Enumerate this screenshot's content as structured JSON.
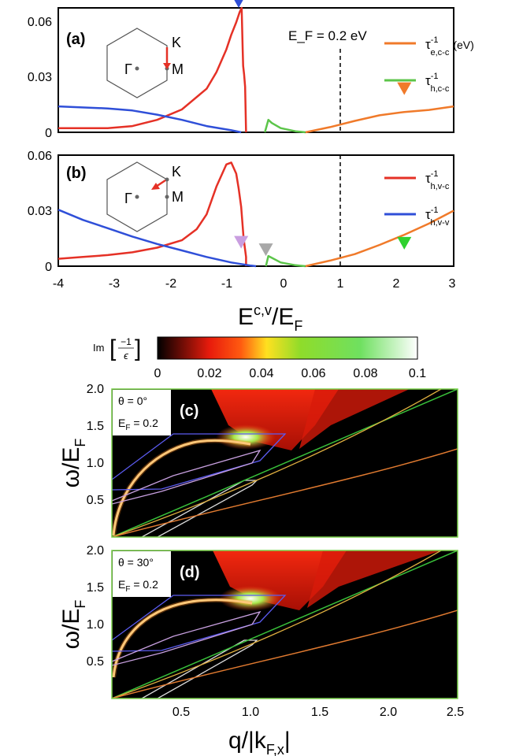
{
  "chart_data": [
    {
      "id": "a",
      "type": "line",
      "panel_label": "(a)",
      "ylim": [
        0,
        0.06
      ],
      "xlim": [
        -4,
        4
      ],
      "yticks": [
        "0",
        "0.03",
        "0.06"
      ],
      "annotation": "E_F = 0.2 eV",
      "inset": {
        "gamma": "Γ",
        "K": "K",
        "M": "M"
      },
      "series": [
        {
          "name": "τ^-1 e,c-c (eV)",
          "main": "τ",
          "sup": "-1",
          "sub": "e,c-c",
          "extra": "(eV)",
          "color": "#f07a2a",
          "x": [
            1,
            1.5,
            2,
            2.5,
            3,
            3.5,
            4
          ],
          "y": [
            0,
            0.0025,
            0.0055,
            0.0082,
            0.0098,
            0.0108,
            0.0125
          ]
        },
        {
          "name": "τ^-1 h,c-c",
          "main": "τ",
          "sup": "-1",
          "sub": "h,c-c",
          "color": "#5cc54a",
          "x": [
            0.18,
            0.25,
            0.32,
            0.5,
            0.8,
            1
          ],
          "y": [
            0,
            0.006,
            0.0045,
            0.002,
            0.0005,
            0
          ]
        },
        {
          "name": "red",
          "color": "#e53126",
          "x": [
            -4,
            -3.5,
            -3,
            -2.5,
            -2,
            -1.5,
            -1,
            -0.8,
            -0.6,
            -0.5,
            -0.4,
            -0.33,
            -0.29,
            -0.27,
            -0.26,
            -0.24,
            -0.22,
            -0.2
          ],
          "y": [
            0.002,
            0.002,
            0.002,
            0.003,
            0.006,
            0.011,
            0.021,
            0.029,
            0.04,
            0.047,
            0.053,
            0.058,
            0.06,
            0.04,
            0.032,
            0.028,
            0.022,
            0
          ]
        },
        {
          "name": "blue",
          "color": "#2f4fd8",
          "x": [
            -4,
            -3,
            -2.5,
            -2,
            -1.5,
            -1,
            -0.5,
            -0.3
          ],
          "y": [
            0.0125,
            0.0115,
            0.0105,
            0.0085,
            0.006,
            0.003,
            0.001,
            0
          ]
        }
      ],
      "markers": [
        {
          "x": -0.35,
          "y": 0.06,
          "color": "#2f4fd8"
        },
        {
          "x": 3.0,
          "y": 0.018,
          "color": "#f07a2a"
        }
      ]
    },
    {
      "id": "b",
      "type": "line",
      "panel_label": "(b)",
      "ylim": [
        0,
        0.06
      ],
      "xlim": [
        -4,
        4
      ],
      "yticks": [
        "0",
        "0.03",
        "0.06"
      ],
      "xticks": [
        "-4",
        "-3",
        "-2",
        "-1",
        "0",
        "1",
        "2",
        "3",
        "4"
      ],
      "xlabel": "E^{c,v}/E_F",
      "xlabel_main": "E",
      "xlabel_sup": "c,v",
      "xlabel_tail": "/E",
      "xlabel_sub": "F",
      "inset": {
        "gamma": "Γ",
        "K": "K",
        "M": "M"
      },
      "series": [
        {
          "name": "τ^-1 h,v-c",
          "main": "τ",
          "sup": "-1",
          "sub": "h,v-c",
          "color": "#e53126",
          "x": [
            -4,
            -3.5,
            -3,
            -2.5,
            -2,
            -1.5,
            -1.2,
            -1,
            -0.8,
            -0.6,
            -0.5,
            -0.4,
            -0.35,
            -0.3,
            -0.25,
            -0.2,
            -0.2
          ],
          "y": [
            0.004,
            0.005,
            0.006,
            0.0075,
            0.01,
            0.014,
            0.02,
            0.028,
            0.043,
            0.055,
            0.056,
            0.05,
            0.042,
            0.032,
            0.015,
            0.005,
            0
          ]
        },
        {
          "name": "τ^-1 h,v-v",
          "main": "τ",
          "sup": "-1",
          "sub": "h,v-v",
          "color": "#2f4fd8",
          "x": [
            -4,
            -3.5,
            -3,
            -2.5,
            -2,
            -1.5,
            -1,
            -0.5,
            -0.1,
            0
          ],
          "y": [
            0.0305,
            0.025,
            0.0205,
            0.016,
            0.012,
            0.0085,
            0.005,
            0.002,
            0.0003,
            0
          ]
        },
        {
          "name": "orange",
          "color": "#f07a2a",
          "x": [
            1,
            1.5,
            2,
            2.5,
            3,
            3.5,
            4
          ],
          "y": [
            0,
            0.003,
            0.0065,
            0.0115,
            0.017,
            0.023,
            0.03
          ]
        },
        {
          "name": "green",
          "color": "#5cc54a",
          "x": [
            0.2,
            0.25,
            0.32,
            0.5,
            0.8,
            1
          ],
          "y": [
            0,
            0.0055,
            0.0045,
            0.002,
            0.0005,
            0
          ]
        }
      ],
      "markers": [
        {
          "x": -0.3,
          "y": 0.0095,
          "color": "#c99ee0"
        },
        {
          "x": 0.2,
          "y": 0.0055,
          "color": "#a8a8a8"
        },
        {
          "x": 3.0,
          "y": 0.009,
          "color": "#2fd12f"
        }
      ]
    },
    {
      "id": "colorbar",
      "type": "heatmap",
      "label_prefix": "Im",
      "label_num": "−1",
      "label_den": "ϵ",
      "range": [
        0,
        0.1
      ],
      "ticks": [
        "0",
        "0.02",
        "0.04",
        "0.06",
        "0.08",
        "0.1"
      ]
    },
    {
      "id": "c",
      "type": "heatmap",
      "panel_label": "(c)",
      "theta": "θ = 0°",
      "ef": "E",
      "ef_sub": "F",
      "ef_value": " = 0.2",
      "ylim": [
        0,
        2.0
      ],
      "xlim": [
        0,
        2.5
      ],
      "yticks": [
        "0.5",
        "1.0",
        "1.5",
        "2.0"
      ],
      "ylabel": "ω/E_F",
      "ylabel_main": "ω/E",
      "ylabel_sub": "F"
    },
    {
      "id": "d",
      "type": "heatmap",
      "panel_label": "(d)",
      "theta": "θ = 30°",
      "ef": "E",
      "ef_sub": "F",
      "ef_value": " = 0.2",
      "ylim": [
        0,
        2.0
      ],
      "xlim": [
        0,
        2.5
      ],
      "yticks": [
        "0.5",
        "1.0",
        "1.5",
        "2.0"
      ],
      "xticks": [
        "0.5",
        "1.0",
        "1.5",
        "2.0",
        "2.5"
      ],
      "ylabel": "ω/E_F",
      "ylabel_main": "ω/E",
      "ylabel_sub": "F",
      "xlabel": "q/|k_F,x|",
      "xlabel_main": "q/|k",
      "xlabel_sub": "F,x",
      "xlabel_tail": "|"
    }
  ]
}
